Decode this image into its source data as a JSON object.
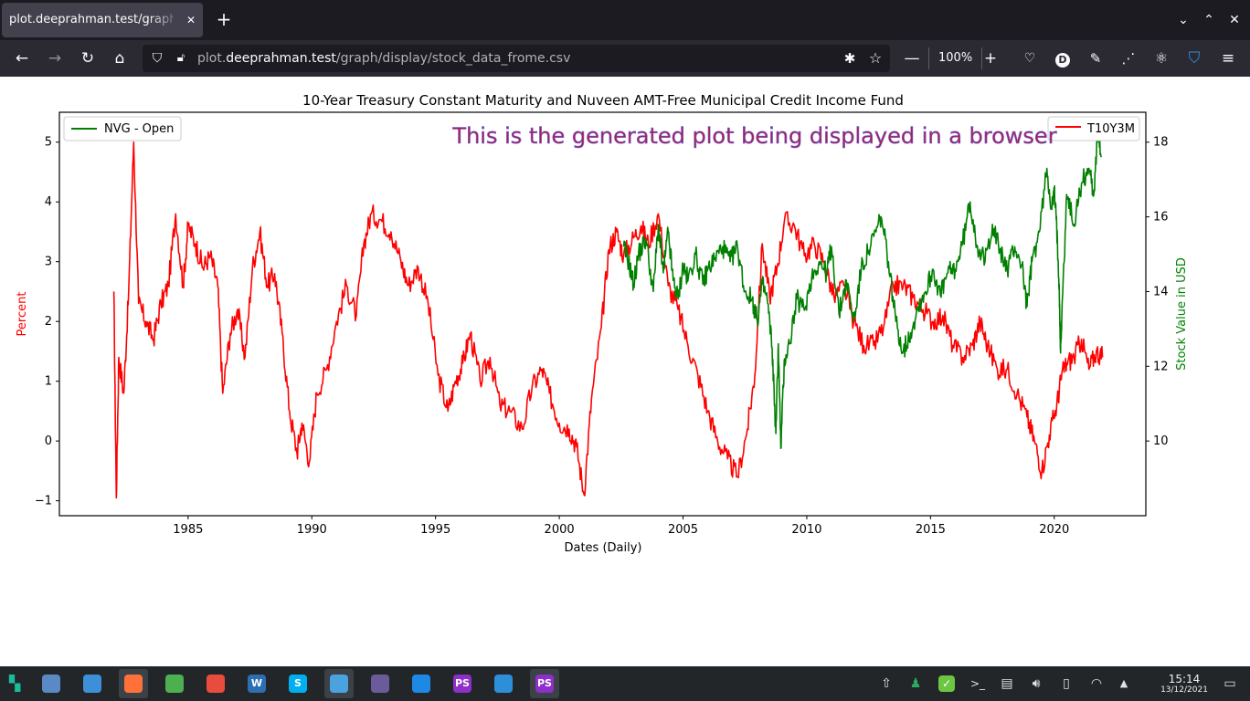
{
  "browser": {
    "tab_title": "plot.deeprahman.test/graph/d",
    "tab_close": "✕",
    "new_tab": "+",
    "url_domain_prefix": "plot.",
    "url_domain": "deeprahman.test",
    "url_path": "/graph/display/stock_data_frome.csv",
    "zoom": "100%",
    "zoom_out": "—",
    "zoom_in": "+"
  },
  "chart_data": {
    "type": "line",
    "title": "10-Year Treasury Constant Maturity  and Nuveen AMT-Free Municipal Credit Income Fund",
    "xlabel": "Dates (Daily)",
    "ylabel_left": "Percent",
    "ylabel_right": "Stock Value in USD",
    "annotation": "This is the generated plot being displayed in a browser",
    "x_ticks": [
      "1985",
      "1990",
      "1995",
      "2000",
      "2005",
      "2010",
      "2015",
      "2020"
    ],
    "y_left_ticks": [
      "−1",
      "0",
      "1",
      "2",
      "3",
      "4",
      "5"
    ],
    "y_right_ticks": [
      "10",
      "12",
      "14",
      "16",
      "18"
    ],
    "xlim": [
      1979.8,
      2023.7
    ],
    "ylim_left": [
      -1.25,
      5.5
    ],
    "ylim_right": [
      8.0,
      18.8
    ],
    "legend_left": {
      "placement": "upper-left",
      "label": "NVG - Open"
    },
    "legend_right": {
      "placement": "upper-right",
      "label": "T10Y3M"
    },
    "series": [
      {
        "name": "T10Y3M",
        "axis": "left",
        "color": "#ff0000",
        "x": [
          1982.0,
          1982.1,
          1982.2,
          1982.4,
          1982.6,
          1982.8,
          1983.0,
          1983.3,
          1983.6,
          1983.9,
          1984.2,
          1984.5,
          1984.8,
          1985.0,
          1985.3,
          1985.6,
          1985.9,
          1986.2,
          1986.4,
          1986.7,
          1987.0,
          1987.3,
          1987.6,
          1987.9,
          1988.2,
          1988.5,
          1988.8,
          1989.1,
          1989.4,
          1989.6,
          1989.9,
          1990.2,
          1990.6,
          1991.0,
          1991.4,
          1991.8,
          1992.1,
          1992.4,
          1992.8,
          1993.2,
          1993.6,
          1993.9,
          1994.3,
          1994.7,
          1995.1,
          1995.5,
          1995.8,
          1996.1,
          1996.4,
          1996.8,
          1997.2,
          1997.6,
          1998.0,
          1998.5,
          1998.9,
          1999.3,
          1999.6,
          2000.0,
          2000.4,
          2000.7,
          2001.0,
          2001.3,
          2001.7,
          2002.0,
          2002.3,
          2002.6,
          2003.0,
          2003.3,
          2003.6,
          2004.0,
          2004.4,
          2004.8,
          2005.2,
          2005.6,
          2006.0,
          2006.4,
          2006.8,
          2007.2,
          2007.6,
          2007.9,
          2008.2,
          2008.5,
          2008.8,
          2009.1,
          2009.5,
          2009.9,
          2010.3,
          2010.7,
          2011.1,
          2011.5,
          2011.9,
          2012.3,
          2012.7,
          2013.1,
          2013.5,
          2013.9,
          2014.3,
          2014.7,
          2015.1,
          2015.5,
          2015.9,
          2016.3,
          2016.7,
          2017.0,
          2017.3,
          2017.7,
          2018.1,
          2018.5,
          2018.9,
          2019.2,
          2019.5,
          2019.8,
          2020.1,
          2020.3,
          2020.5,
          2020.8,
          2021.1,
          2021.4,
          2021.7,
          2021.95
        ],
        "values": [
          2.5,
          -0.95,
          1.4,
          0.8,
          2.5,
          5.0,
          2.3,
          2.0,
          1.7,
          2.3,
          2.6,
          3.8,
          2.6,
          3.6,
          3.3,
          2.9,
          3.1,
          2.6,
          0.8,
          1.8,
          2.2,
          1.4,
          2.9,
          3.5,
          2.6,
          2.8,
          1.8,
          0.5,
          -0.2,
          0.3,
          -0.35,
          0.8,
          1.2,
          2.0,
          2.6,
          2.1,
          3.3,
          3.8,
          3.7,
          3.5,
          3.0,
          2.6,
          2.9,
          2.3,
          1.1,
          0.5,
          1.0,
          1.3,
          1.8,
          1.0,
          1.4,
          0.6,
          0.5,
          0.2,
          0.9,
          1.2,
          0.8,
          0.3,
          0.2,
          -0.1,
          -0.9,
          0.7,
          1.9,
          3.2,
          3.5,
          3.1,
          3.4,
          3.6,
          3.3,
          3.8,
          2.6,
          2.2,
          1.6,
          1.1,
          0.5,
          0.0,
          -0.3,
          -0.6,
          0.2,
          1.1,
          3.3,
          2.4,
          2.9,
          3.7,
          3.6,
          3.1,
          3.3,
          3.0,
          2.4,
          2.6,
          2.0,
          1.6,
          1.6,
          1.9,
          2.6,
          2.6,
          2.4,
          2.2,
          2.0,
          2.1,
          1.6,
          1.4,
          1.6,
          2.0,
          1.6,
          1.2,
          1.2,
          0.8,
          0.4,
          0.0,
          -0.5,
          0.1,
          0.6,
          1.1,
          1.3,
          1.4,
          1.7,
          1.2,
          1.5,
          1.4
        ]
      },
      {
        "name": "NVG - Open",
        "axis": "right",
        "color": "#008000",
        "x": [
          2002.6,
          2002.8,
          2003.0,
          2003.2,
          2003.5,
          2003.8,
          2004.0,
          2004.2,
          2004.4,
          2004.6,
          2004.8,
          2005.0,
          2005.2,
          2005.5,
          2005.8,
          2006.0,
          2006.3,
          2006.6,
          2006.9,
          2007.2,
          2007.5,
          2007.8,
          2008.0,
          2008.2,
          2008.4,
          2008.6,
          2008.75,
          2008.85,
          2008.95,
          2009.1,
          2009.3,
          2009.6,
          2009.9,
          2010.2,
          2010.5,
          2010.8,
          2011.0,
          2011.3,
          2011.6,
          2011.9,
          2012.2,
          2012.5,
          2012.8,
          2013.0,
          2013.3,
          2013.6,
          2013.9,
          2014.2,
          2014.5,
          2014.8,
          2015.1,
          2015.4,
          2015.7,
          2016.0,
          2016.3,
          2016.6,
          2016.9,
          2017.2,
          2017.5,
          2017.8,
          2018.1,
          2018.4,
          2018.7,
          2018.9,
          2019.1,
          2019.4,
          2019.7,
          2019.9,
          2020.0,
          2020.1,
          2020.2,
          2020.25,
          2020.3,
          2020.5,
          2020.8,
          2021.1,
          2021.4,
          2021.6,
          2021.75,
          2021.9
        ],
        "values": [
          15.2,
          14.8,
          14.2,
          15.0,
          15.4,
          14.0,
          15.8,
          14.5,
          15.6,
          14.3,
          13.8,
          14.7,
          14.3,
          15.0,
          14.2,
          14.6,
          14.9,
          15.2,
          14.8,
          15.2,
          14.0,
          13.8,
          13.2,
          14.2,
          13.8,
          12.5,
          10.2,
          12.6,
          9.8,
          12.2,
          12.6,
          13.8,
          13.5,
          14.4,
          14.8,
          14.5,
          15.2,
          13.4,
          14.3,
          13.2,
          14.6,
          15.1,
          15.6,
          16.0,
          14.8,
          13.2,
          12.4,
          12.9,
          13.6,
          14.0,
          14.6,
          13.9,
          14.5,
          14.6,
          15.3,
          16.4,
          15.2,
          14.8,
          15.8,
          15.1,
          14.6,
          15.2,
          14.7,
          13.6,
          14.8,
          15.6,
          17.3,
          16.2,
          16.7,
          15.7,
          14.2,
          12.4,
          13.2,
          16.6,
          15.8,
          16.9,
          17.3,
          16.6,
          18.3,
          17.6
        ]
      }
    ]
  },
  "taskbar": {
    "clock_time": "15:14",
    "clock_date": "13/12/2021",
    "apps": [
      {
        "icon": "files-icon",
        "glyph": "",
        "color": "#5a8ac6"
      },
      {
        "icon": "folder-icon",
        "glyph": "",
        "color": "#3d8fd8"
      },
      {
        "icon": "firefox-icon",
        "glyph": "",
        "color": "#ff7139"
      },
      {
        "icon": "chrome-icon",
        "glyph": "",
        "color": "#4caf50"
      },
      {
        "icon": "package-icon",
        "glyph": "",
        "color": "#e74c3c"
      },
      {
        "icon": "writer-icon",
        "glyph": "W",
        "color": "#2e6fb3"
      },
      {
        "icon": "skype-icon",
        "glyph": "S",
        "color": "#00aff0"
      },
      {
        "icon": "mail-icon",
        "glyph": "",
        "color": "#4aa3df"
      },
      {
        "icon": "penguin-icon",
        "glyph": "",
        "color": "#6c5b9b"
      },
      {
        "icon": "vscode-icon",
        "glyph": "",
        "color": "#1e88e5"
      },
      {
        "icon": "phpstorm-icon",
        "glyph": "PS",
        "color": "#8e2fc8"
      },
      {
        "icon": "teamviewer-icon",
        "glyph": "",
        "color": "#2d8fd8"
      },
      {
        "icon": "phpstorm-icon-2",
        "glyph": "PS",
        "color": "#8e2fc8"
      }
    ]
  }
}
